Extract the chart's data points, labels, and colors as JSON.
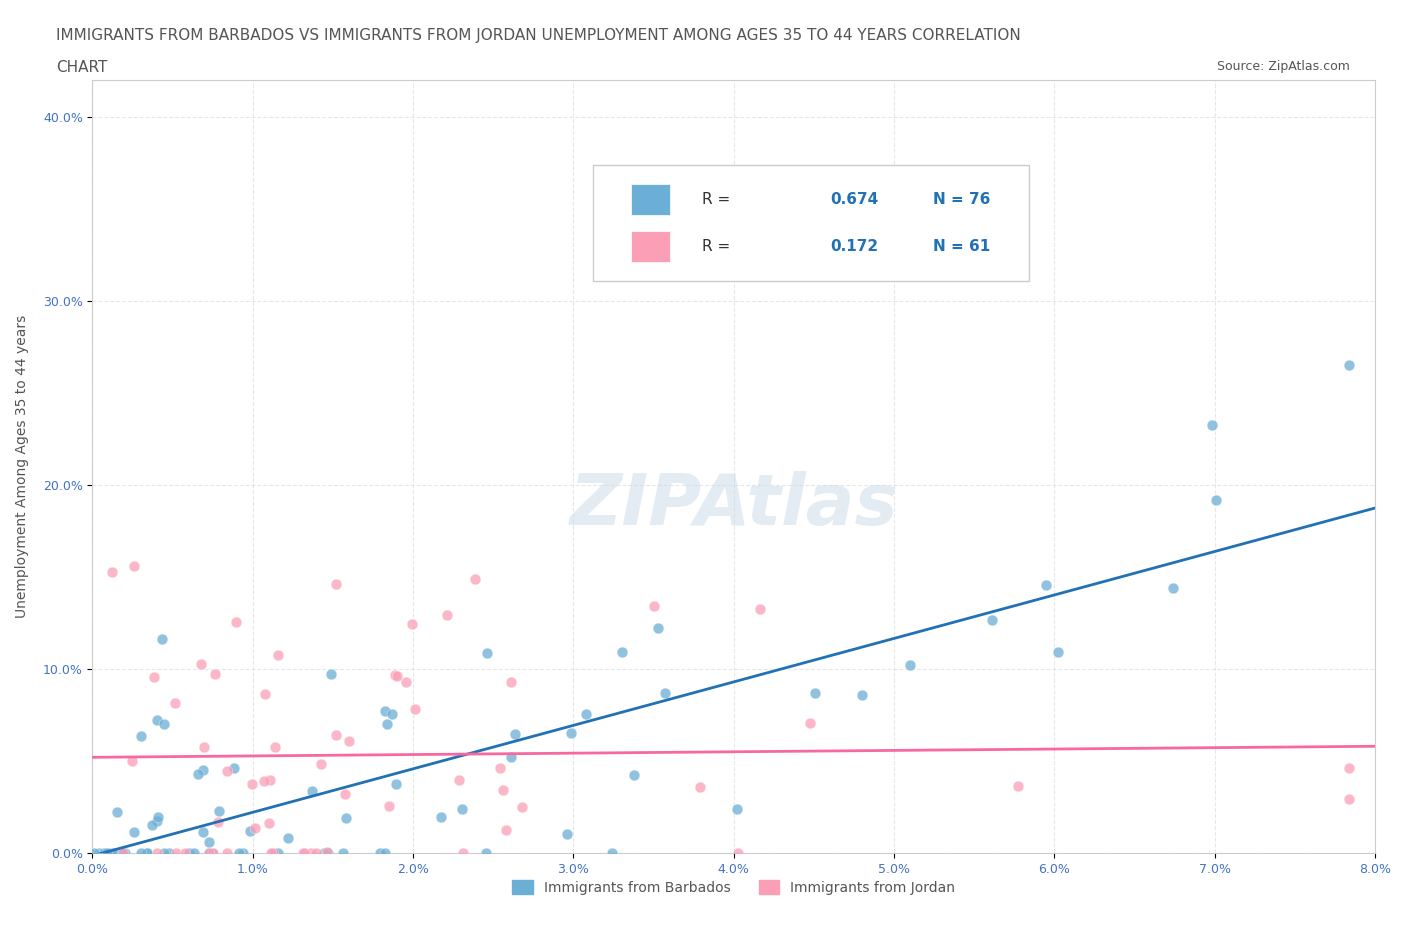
{
  "title_line1": "IMMIGRANTS FROM BARBADOS VS IMMIGRANTS FROM JORDAN UNEMPLOYMENT AMONG AGES 35 TO 44 YEARS CORRELATION",
  "title_line2": "CHART",
  "source": "Source: ZipAtlas.com",
  "xlabel": "",
  "ylabel": "Unemployment Among Ages 35 to 44 years",
  "xlim": [
    0.0,
    0.08
  ],
  "ylim": [
    0.0,
    0.42
  ],
  "xticks": [
    0.0,
    0.01,
    0.02,
    0.03,
    0.04,
    0.05,
    0.06,
    0.07,
    0.08
  ],
  "xtick_labels": [
    "0.0%",
    "1.0%",
    "2.0%",
    "3.0%",
    "4.0%",
    "5.0%",
    "6.0%",
    "7.0%",
    "8.0%"
  ],
  "yticks": [
    0.0,
    0.1,
    0.2,
    0.3,
    0.4
  ],
  "ytick_labels": [
    "0.0%",
    "10.0%",
    "20.0%",
    "30.0%",
    "40.0%"
  ],
  "barbados_color": "#6baed6",
  "jordan_color": "#fa9fb5",
  "barbados_line_color": "#2171b5",
  "jordan_line_color": "#f768a1",
  "watermark": "ZIPAtlas",
  "watermark_color": "#c8d8e8",
  "legend_R1": "R = 0.674",
  "legend_N1": "N = 76",
  "legend_R2": "R = 0.172",
  "legend_N2": "N = 61",
  "legend_label1": "Immigrants from Barbados",
  "legend_label2": "Immigrants from Jordan",
  "background_color": "#ffffff",
  "grid_color": "#dddddd",
  "title_color": "#555555",
  "axis_color": "#4472c4",
  "barbados_seed": 42,
  "jordan_seed": 123,
  "barbados_N": 76,
  "jordan_N": 61,
  "barbados_R": 0.674,
  "jordan_R": 0.172,
  "title_fontsize": 11,
  "source_fontsize": 9,
  "axis_label_fontsize": 10,
  "tick_fontsize": 9,
  "legend_fontsize": 11
}
